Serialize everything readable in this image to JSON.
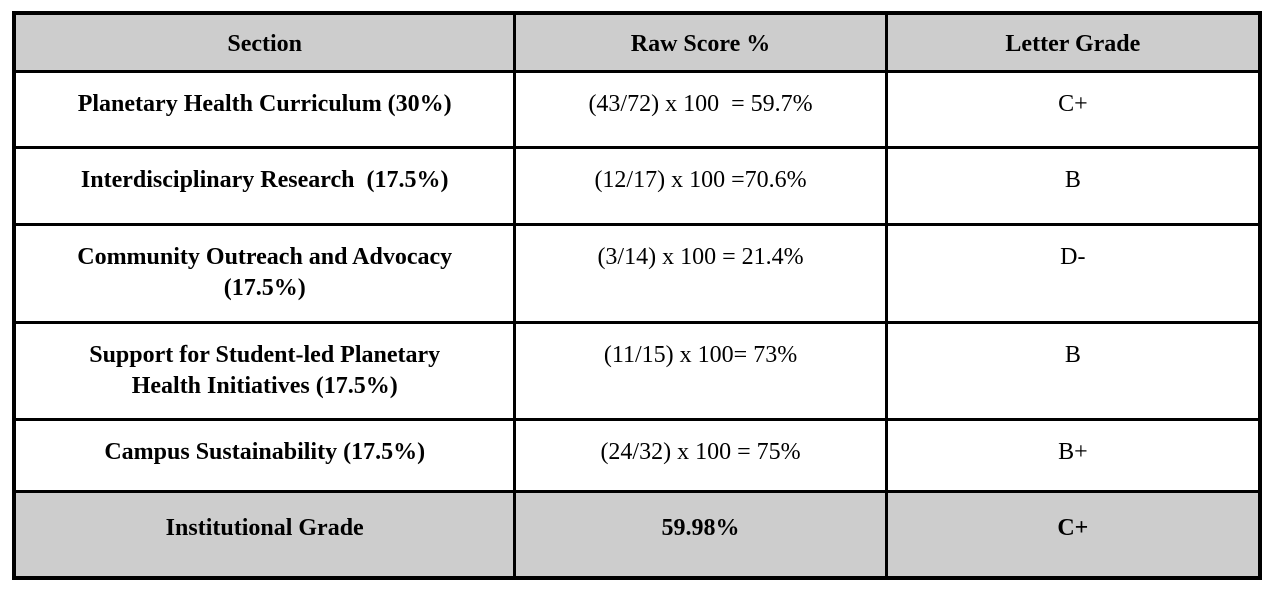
{
  "colors": {
    "header_bg": "#cdcdcd",
    "border": "#000000",
    "body_bg": "#ffffff",
    "text": "#000000"
  },
  "table": {
    "headers": {
      "section": "Section",
      "raw_score": "Raw Score %",
      "letter_grade": "Letter Grade"
    },
    "rows": [
      {
        "section": "Planetary Health Curriculum (30%)",
        "raw_score": "(43/72) x 100  = 59.7%",
        "letter_grade": "C+"
      },
      {
        "section": "Interdisciplinary Research  (17.5%)",
        "raw_score": "(12/17) x 100 =70.6%",
        "letter_grade": "B"
      },
      {
        "section": "Community Outreach and Advocacy\n(17.5%)",
        "raw_score": "(3/14) x 100 = 21.4%",
        "letter_grade": "D-"
      },
      {
        "section": "Support for Student-led Planetary\nHealth Initiatives (17.5%)",
        "raw_score": "(11/15) x 100= 73%",
        "letter_grade": "B"
      },
      {
        "section": "Campus Sustainability (17.5%)",
        "raw_score": "(24/32) x 100 = 75%",
        "letter_grade": "B+"
      }
    ],
    "footer": {
      "section": "Institutional Grade",
      "raw_score": "59.98%",
      "letter_grade": "C+"
    }
  }
}
